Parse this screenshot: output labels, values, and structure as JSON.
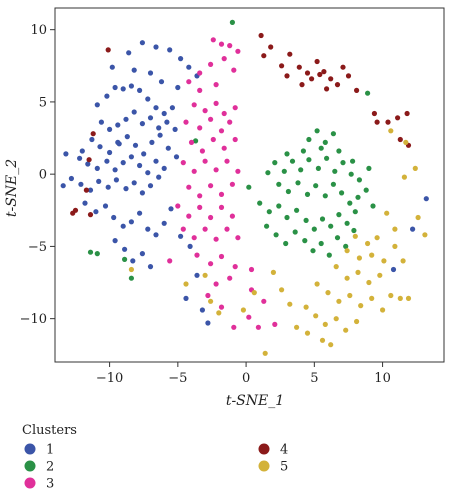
{
  "chart_data": {
    "type": "scatter",
    "title": "",
    "xlabel": "t-SNE_1",
    "ylabel": "t-SNE_2",
    "xlim": [
      -14,
      14.5
    ],
    "ylim": [
      -13,
      11.5
    ],
    "xticks": [
      -10,
      -5,
      0,
      5,
      10
    ],
    "yticks": [
      -10,
      -5,
      0,
      5,
      10
    ],
    "xtick_labels": [
      "−10",
      "−5",
      "0",
      "5",
      "10"
    ],
    "ytick_labels": [
      "−10",
      "−5",
      "0",
      "5",
      "10"
    ],
    "grid": false,
    "legend": {
      "title": "Clusters",
      "placement": "bottom-left"
    },
    "series": [
      {
        "name": "1",
        "color": "#3b55a8",
        "points": [
          [
            -10.9,
            4.8
          ],
          [
            -10.2,
            5.4
          ],
          [
            -9.6,
            6.0
          ],
          [
            -9.0,
            5.9
          ],
          [
            -8.4,
            6.1
          ],
          [
            -7.8,
            5.8
          ],
          [
            -7.2,
            5.2
          ],
          [
            -6.6,
            4.6
          ],
          [
            -6.0,
            4.2
          ],
          [
            -5.4,
            4.6
          ],
          [
            -10.6,
            3.6
          ],
          [
            -10.0,
            3.1
          ],
          [
            -9.4,
            3.4
          ],
          [
            -8.8,
            3.8
          ],
          [
            -8.2,
            4.3
          ],
          [
            -7.6,
            3.5
          ],
          [
            -7.0,
            3.9
          ],
          [
            -6.4,
            3.2
          ],
          [
            -5.8,
            3.6
          ],
          [
            -5.2,
            3.1
          ],
          [
            -11.3,
            2.4
          ],
          [
            -10.7,
            1.9
          ],
          [
            -10.0,
            1.5
          ],
          [
            -9.3,
            2.1
          ],
          [
            -8.7,
            2.6
          ],
          [
            -8.1,
            2.0
          ],
          [
            -7.5,
            1.4
          ],
          [
            -6.9,
            2.2
          ],
          [
            -6.3,
            2.7
          ],
          [
            -5.7,
            1.8
          ],
          [
            -5.1,
            1.2
          ],
          [
            -12.2,
            1.1
          ],
          [
            -11.6,
            0.7
          ],
          [
            -10.9,
            0.4
          ],
          [
            -10.2,
            0.9
          ],
          [
            -9.6,
            0.3
          ],
          [
            -9.0,
            0.8
          ],
          [
            -8.4,
            1.2
          ],
          [
            -7.8,
            0.6
          ],
          [
            -7.2,
            0.1
          ],
          [
            -6.6,
            0.9
          ],
          [
            -6.0,
            0.4
          ],
          [
            -12.8,
            -0.3
          ],
          [
            -12.1,
            -0.7
          ],
          [
            -11.4,
            -1.1
          ],
          [
            -10.8,
            -0.5
          ],
          [
            -10.1,
            -0.9
          ],
          [
            -9.5,
            -0.4
          ],
          [
            -8.8,
            -1.0
          ],
          [
            -8.2,
            -0.6
          ],
          [
            -7.6,
            -1.3
          ],
          [
            -7.0,
            -0.8
          ],
          [
            -6.4,
            -0.2
          ],
          [
            -11.8,
            -2.0
          ],
          [
            -11.0,
            -2.6
          ],
          [
            -10.3,
            -2.2
          ],
          [
            -9.7,
            -3.0
          ],
          [
            -9.0,
            -3.6
          ],
          [
            -8.4,
            -3.3
          ],
          [
            -7.8,
            -2.7
          ],
          [
            -7.2,
            -3.8
          ],
          [
            -6.6,
            -4.2
          ],
          [
            -6.0,
            -3.4
          ],
          [
            -5.5,
            -2.4
          ],
          [
            -9.6,
            -4.6
          ],
          [
            -8.9,
            -5.2
          ],
          [
            -8.3,
            -6.0
          ],
          [
            -7.6,
            -5.5
          ],
          [
            -7.0,
            -6.4
          ],
          [
            -4.8,
            -4.3
          ],
          [
            -4.1,
            -5.0
          ],
          [
            -3.6,
            -7.0
          ],
          [
            -4.4,
            -8.6
          ],
          [
            -3.2,
            -9.4
          ],
          [
            -2.8,
            -10.3
          ],
          [
            -8.6,
            8.4
          ],
          [
            -7.6,
            9.1
          ],
          [
            -6.6,
            8.8
          ],
          [
            -5.6,
            8.6
          ],
          [
            -4.8,
            8.0
          ],
          [
            -4.2,
            7.4
          ],
          [
            -3.6,
            6.8
          ],
          [
            -9.8,
            7.4
          ],
          [
            -8.2,
            7.2
          ],
          [
            -7.0,
            7.0
          ],
          [
            -6.2,
            6.4
          ],
          [
            -5.0,
            6.0
          ],
          [
            -9.4,
            2.2
          ],
          [
            -13.2,
            1.4
          ],
          [
            -13.4,
            -0.8
          ],
          [
            -12.0,
            1.6
          ],
          [
            13.2,
            -1.7
          ],
          [
            12.2,
            -3.8
          ],
          [
            10.8,
            -6.6
          ]
        ]
      },
      {
        "name": "2",
        "color": "#2a9146",
        "points": [
          [
            -1.0,
            10.5
          ],
          [
            -3.7,
            2.3
          ],
          [
            -11.4,
            -5.4
          ],
          [
            -10.9,
            -5.5
          ],
          [
            -8.4,
            -7.2
          ],
          [
            -8.9,
            -5.9
          ],
          [
            8.9,
            5.6
          ],
          [
            0.2,
            -0.9
          ],
          [
            2.1,
            0.8
          ],
          [
            2.8,
            0.2
          ],
          [
            3.4,
            0.9
          ],
          [
            4.0,
            0.3
          ],
          [
            4.6,
            1.0
          ],
          [
            5.3,
            0.4
          ],
          [
            5.9,
            1.1
          ],
          [
            6.5,
            0.2
          ],
          [
            7.1,
            0.8
          ],
          [
            7.7,
            0.0
          ],
          [
            8.3,
            -0.4
          ],
          [
            9.0,
            0.4
          ],
          [
            2.4,
            -0.7
          ],
          [
            3.1,
            -1.2
          ],
          [
            3.8,
            -0.6
          ],
          [
            4.5,
            -1.4
          ],
          [
            5.1,
            -0.8
          ],
          [
            5.8,
            -1.5
          ],
          [
            6.4,
            -0.7
          ],
          [
            7.0,
            -1.3
          ],
          [
            7.6,
            -2.0
          ],
          [
            8.2,
            -1.6
          ],
          [
            8.8,
            -1.1
          ],
          [
            9.3,
            -2.2
          ],
          [
            1.0,
            -2.0
          ],
          [
            1.7,
            -2.6
          ],
          [
            2.4,
            -2.2
          ],
          [
            3.0,
            -3.0
          ],
          [
            3.7,
            -2.5
          ],
          [
            4.4,
            -3.2
          ],
          [
            5.0,
            -3.8
          ],
          [
            5.6,
            -3.1
          ],
          [
            6.2,
            -3.6
          ],
          [
            6.8,
            -2.8
          ],
          [
            7.4,
            -3.4
          ],
          [
            8.0,
            -2.6
          ],
          [
            1.5,
            -3.6
          ],
          [
            2.2,
            -4.2
          ],
          [
            2.9,
            -4.8
          ],
          [
            3.6,
            -4.0
          ],
          [
            4.3,
            -4.6
          ],
          [
            4.9,
            -5.3
          ],
          [
            5.5,
            -4.8
          ],
          [
            6.1,
            -5.6
          ],
          [
            6.7,
            -4.4
          ],
          [
            7.3,
            -5.0
          ],
          [
            7.9,
            -3.9
          ],
          [
            4.6,
            2.4
          ],
          [
            5.2,
            3.0
          ],
          [
            5.8,
            2.2
          ],
          [
            6.4,
            2.8
          ],
          [
            4.2,
            1.6
          ],
          [
            5.5,
            1.8
          ],
          [
            6.8,
            1.6
          ],
          [
            3.0,
            1.4
          ],
          [
            1.6,
            0.1
          ],
          [
            7.8,
            0.9
          ]
        ]
      },
      {
        "name": "3",
        "color": "#e0309a",
        "points": [
          [
            -2.4,
            9.3
          ],
          [
            -1.8,
            9.0
          ],
          [
            -1.2,
            8.9
          ],
          [
            -0.6,
            8.5
          ],
          [
            -1.6,
            8.0
          ],
          [
            -2.6,
            7.6
          ],
          [
            -3.4,
            7.0
          ],
          [
            -4.2,
            6.4
          ],
          [
            -3.4,
            5.8
          ],
          [
            -2.2,
            6.2
          ],
          [
            -0.9,
            7.2
          ],
          [
            -3.8,
            4.8
          ],
          [
            -3.0,
            4.4
          ],
          [
            -2.2,
            4.9
          ],
          [
            -1.6,
            4.2
          ],
          [
            -0.8,
            4.6
          ],
          [
            -4.4,
            3.6
          ],
          [
            -3.4,
            3.2
          ],
          [
            -2.6,
            3.8
          ],
          [
            -1.8,
            3.0
          ],
          [
            -1.2,
            3.6
          ],
          [
            -4.0,
            2.2
          ],
          [
            -3.2,
            1.6
          ],
          [
            -2.4,
            2.4
          ],
          [
            -1.6,
            1.8
          ],
          [
            -0.8,
            2.4
          ],
          [
            -4.6,
            0.8
          ],
          [
            -3.8,
            0.2
          ],
          [
            -3.0,
            0.9
          ],
          [
            -2.2,
            0.3
          ],
          [
            -1.4,
            0.9
          ],
          [
            -0.6,
            0.2
          ],
          [
            -4.2,
            -0.9
          ],
          [
            -3.4,
            -1.5
          ],
          [
            -2.6,
            -0.8
          ],
          [
            -1.8,
            -1.4
          ],
          [
            -1.0,
            -0.7
          ],
          [
            -5.0,
            -2.2
          ],
          [
            -4.2,
            -2.9
          ],
          [
            -3.4,
            -2.3
          ],
          [
            -2.6,
            -3.0
          ],
          [
            -1.8,
            -2.3
          ],
          [
            -1.0,
            -2.9
          ],
          [
            -4.6,
            -3.8
          ],
          [
            -3.8,
            -4.4
          ],
          [
            -3.0,
            -3.8
          ],
          [
            -2.2,
            -4.5
          ],
          [
            -1.4,
            -3.8
          ],
          [
            -0.6,
            -4.4
          ],
          [
            -3.6,
            -5.6
          ],
          [
            -2.6,
            -6.2
          ],
          [
            -1.8,
            -5.7
          ],
          [
            -0.8,
            -6.4
          ],
          [
            -2.2,
            -7.6
          ],
          [
            -1.2,
            -7.2
          ],
          [
            0.4,
            -6.6
          ],
          [
            0.4,
            -8.0
          ],
          [
            -5.6,
            -6.0
          ],
          [
            -2.8,
            -8.4
          ],
          [
            -1.8,
            -9.2
          ],
          [
            -0.9,
            -10.6
          ],
          [
            0.2,
            -9.9
          ],
          [
            0.9,
            -10.6
          ],
          [
            2.1,
            -10.4
          ],
          [
            1.3,
            -8.8
          ]
        ]
      },
      {
        "name": "4",
        "color": "#8b1a1a",
        "points": [
          [
            -10.1,
            8.6
          ],
          [
            -11.2,
            2.8
          ],
          [
            -11.5,
            1.0
          ],
          [
            -11.7,
            -1.1
          ],
          [
            -12.5,
            -2.5
          ],
          [
            -11.4,
            -2.8
          ],
          [
            -12.7,
            -2.7
          ],
          [
            1.1,
            9.6
          ],
          [
            1.8,
            8.8
          ],
          [
            1.3,
            8.2
          ],
          [
            2.6,
            7.5
          ],
          [
            3.2,
            8.3
          ],
          [
            3.9,
            7.4
          ],
          [
            4.5,
            7.0
          ],
          [
            5.2,
            7.8
          ],
          [
            5.7,
            7.1
          ],
          [
            6.2,
            6.6
          ],
          [
            6.7,
            6.2
          ],
          [
            7.1,
            7.4
          ],
          [
            7.5,
            6.8
          ],
          [
            3.0,
            6.8
          ],
          [
            4.1,
            6.2
          ],
          [
            4.8,
            6.6
          ],
          [
            5.4,
            6.9
          ],
          [
            5.9,
            5.9
          ],
          [
            8.1,
            5.8
          ],
          [
            9.4,
            4.2
          ],
          [
            10.4,
            3.6
          ],
          [
            11.1,
            3.9
          ],
          [
            11.8,
            4.2
          ],
          [
            11.3,
            2.4
          ],
          [
            11.9,
            2.0
          ],
          [
            9.6,
            3.6
          ]
        ]
      },
      {
        "name": "5",
        "color": "#d3b23a",
        "points": [
          [
            10.6,
            3.0
          ],
          [
            11.7,
            2.2
          ],
          [
            12.4,
            0.4
          ],
          [
            11.6,
            -0.2
          ],
          [
            10.3,
            -2.7
          ],
          [
            12.6,
            -3.0
          ],
          [
            10.9,
            -3.8
          ],
          [
            13.1,
            -4.2
          ],
          [
            8.0,
            -4.3
          ],
          [
            8.9,
            -4.8
          ],
          [
            9.6,
            -4.4
          ],
          [
            7.4,
            -5.3
          ],
          [
            8.3,
            -5.8
          ],
          [
            9.2,
            -5.6
          ],
          [
            10.1,
            -6.0
          ],
          [
            10.9,
            -5.0
          ],
          [
            11.5,
            -6.0
          ],
          [
            6.6,
            -6.4
          ],
          [
            7.4,
            -7.2
          ],
          [
            8.2,
            -6.8
          ],
          [
            9.0,
            -7.5
          ],
          [
            9.8,
            -7.0
          ],
          [
            10.6,
            -8.4
          ],
          [
            11.3,
            -8.6
          ],
          [
            11.9,
            -8.6
          ],
          [
            5.2,
            -7.6
          ],
          [
            6.0,
            -8.2
          ],
          [
            6.8,
            -8.8
          ],
          [
            7.6,
            -8.4
          ],
          [
            8.4,
            -9.1
          ],
          [
            9.2,
            -8.6
          ],
          [
            10.0,
            -9.4
          ],
          [
            4.4,
            -9.2
          ],
          [
            5.1,
            -9.8
          ],
          [
            5.8,
            -10.4
          ],
          [
            6.6,
            -10.0
          ],
          [
            7.3,
            -10.8
          ],
          [
            8.1,
            -10.2
          ],
          [
            3.7,
            -10.6
          ],
          [
            4.5,
            -11.0
          ],
          [
            5.6,
            -11.5
          ],
          [
            2.0,
            -6.8
          ],
          [
            2.6,
            -8.0
          ],
          [
            3.2,
            -9.0
          ],
          [
            0.6,
            -8.2
          ],
          [
            -0.2,
            -9.4
          ],
          [
            -2.6,
            -8.8
          ],
          [
            -2.0,
            -9.6
          ],
          [
            -4.4,
            -7.6
          ],
          [
            -3.0,
            -7.0
          ],
          [
            -8.4,
            -6.6
          ],
          [
            1.4,
            -12.4
          ],
          [
            6.2,
            -11.8
          ]
        ]
      }
    ]
  }
}
